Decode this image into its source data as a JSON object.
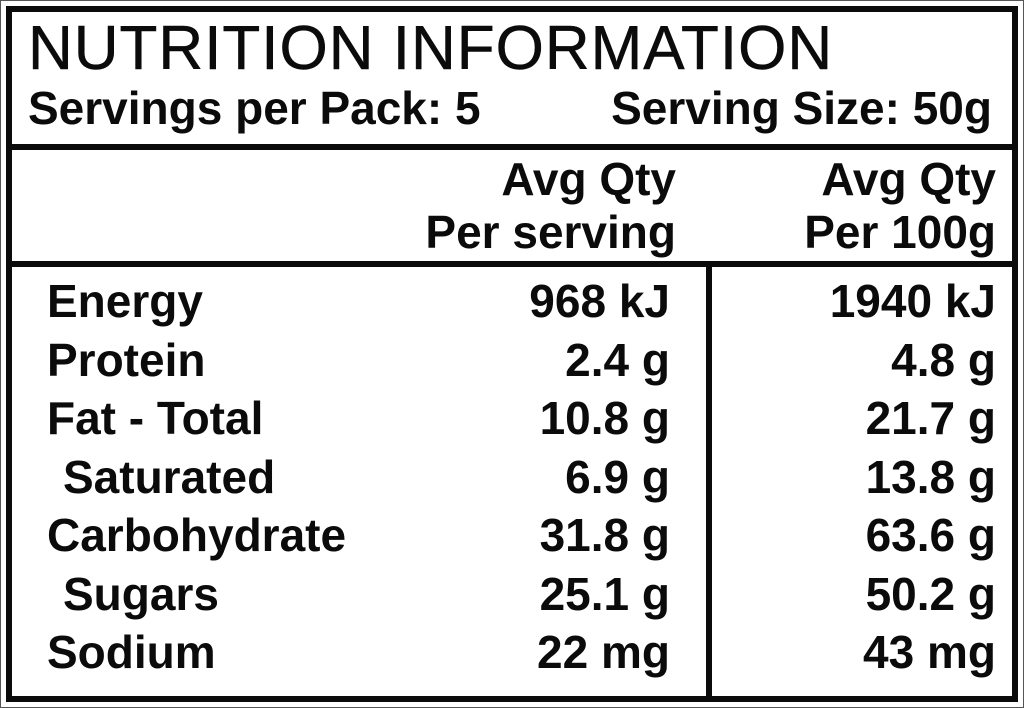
{
  "label": {
    "title": "NUTRITION INFORMATION",
    "servings_per_pack": "Servings per Pack: 5",
    "serving_size": "Serving Size: 50g",
    "columns": {
      "per_serving": {
        "line1": "Avg Qty",
        "line2": "Per serving"
      },
      "per_100g": {
        "line1": "Avg Qty",
        "line2": "Per 100g"
      }
    },
    "rows": [
      {
        "name": "Energy",
        "indent": false,
        "per_serving": "968 kJ",
        "per_100g": "1940 kJ"
      },
      {
        "name": "Protein",
        "indent": false,
        "per_serving": "2.4 g",
        "per_100g": "4.8 g"
      },
      {
        "name": "Fat - Total",
        "indent": false,
        "per_serving": "10.8 g",
        "per_100g": "21.7 g"
      },
      {
        "name": "Saturated",
        "indent": true,
        "per_serving": "6.9 g",
        "per_100g": "13.8 g"
      },
      {
        "name": "Carbohydrate",
        "indent": false,
        "per_serving": "31.8 g",
        "per_100g": "63.6 g"
      },
      {
        "name": "Sugars",
        "indent": true,
        "per_serving": "25.1 g",
        "per_100g": "50.2 g"
      },
      {
        "name": "Sodium",
        "indent": false,
        "per_serving": "22 mg",
        "per_100g": "43 mg"
      }
    ],
    "colors": {
      "text": "#0b0b0b",
      "border": "#0b0b0b",
      "background": "#ffffff"
    }
  }
}
